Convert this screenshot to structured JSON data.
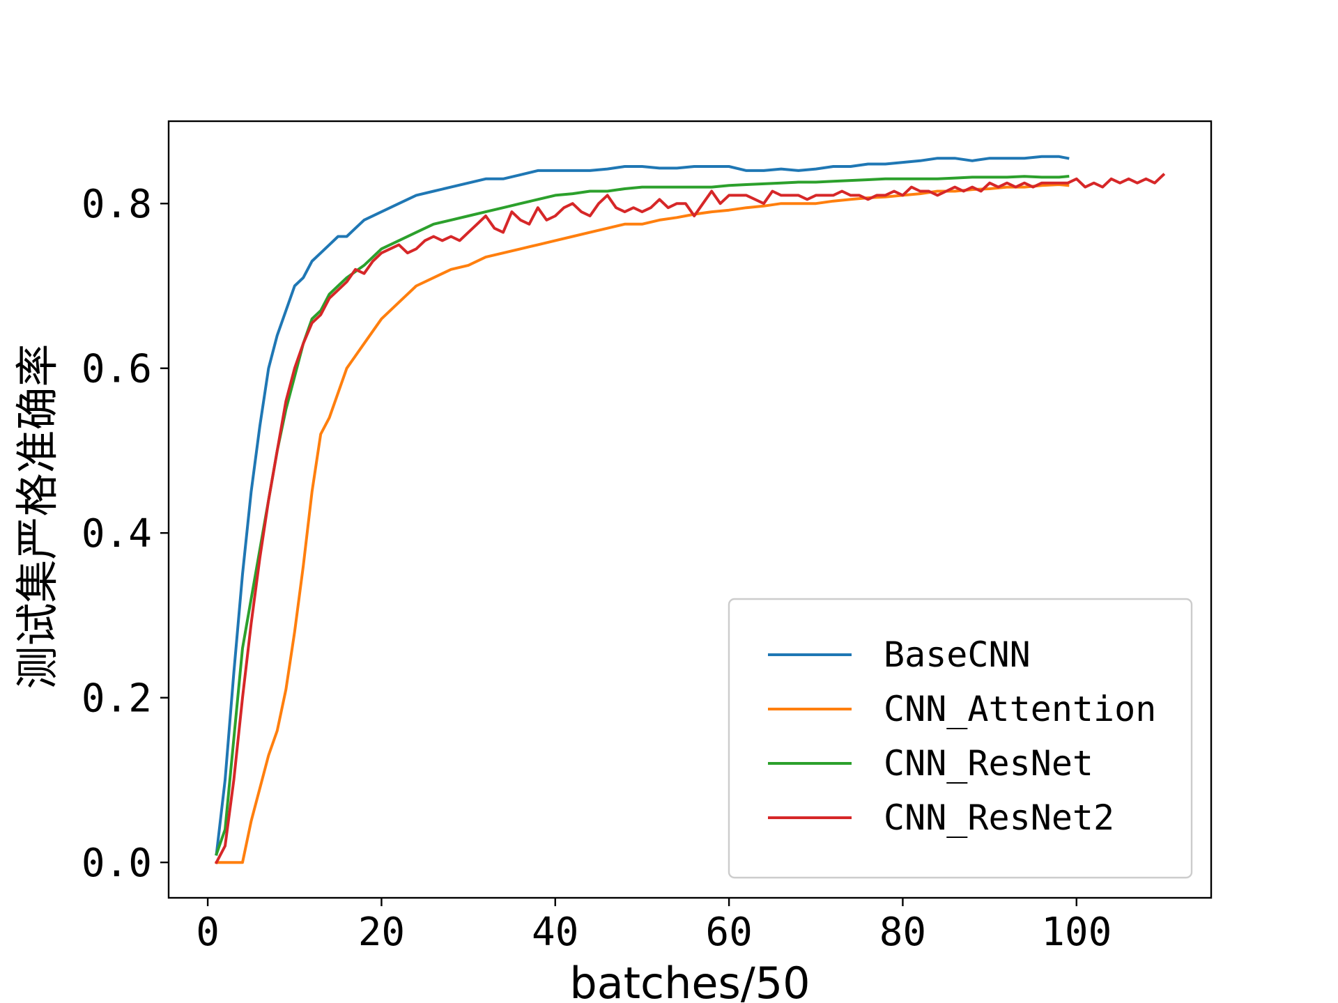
{
  "chart_data": {
    "type": "line",
    "title": "",
    "xlabel": "batches/50",
    "ylabel": "测试集严格准确率",
    "xlim": [
      -4.5,
      115.5
    ],
    "ylim": [
      -0.043,
      0.9
    ],
    "xticks": [
      0,
      20,
      40,
      60,
      80,
      100
    ],
    "xtick_labels": [
      "0",
      "20",
      "40",
      "60",
      "80",
      "100"
    ],
    "yticks": [
      0.0,
      0.2,
      0.4,
      0.6,
      0.8
    ],
    "ytick_labels": [
      "0.0",
      "0.2",
      "0.4",
      "0.6",
      "0.8"
    ],
    "grid": false,
    "legend_position": "lower-right",
    "colors": {
      "BaseCNN": "#1f77b4",
      "CNN_Attention": "#ff7f0e",
      "CNN_ResNet": "#2ca02c",
      "CNN_ResNet2": "#d62728"
    },
    "series": [
      {
        "name": "BaseCNN",
        "x": [
          1,
          2,
          3,
          4,
          5,
          6,
          7,
          8,
          9,
          10,
          11,
          12,
          13,
          14,
          15,
          16,
          17,
          18,
          20,
          22,
          24,
          26,
          28,
          30,
          32,
          34,
          36,
          38,
          40,
          42,
          44,
          46,
          48,
          50,
          52,
          54,
          56,
          58,
          60,
          62,
          64,
          66,
          68,
          70,
          72,
          74,
          76,
          78,
          80,
          82,
          84,
          86,
          88,
          90,
          92,
          94,
          96,
          98,
          99
        ],
        "y": [
          0.01,
          0.1,
          0.23,
          0.35,
          0.45,
          0.53,
          0.6,
          0.64,
          0.67,
          0.7,
          0.71,
          0.73,
          0.74,
          0.75,
          0.76,
          0.76,
          0.77,
          0.78,
          0.79,
          0.8,
          0.81,
          0.815,
          0.82,
          0.825,
          0.83,
          0.83,
          0.835,
          0.84,
          0.84,
          0.84,
          0.84,
          0.842,
          0.845,
          0.845,
          0.843,
          0.843,
          0.845,
          0.845,
          0.845,
          0.84,
          0.84,
          0.842,
          0.84,
          0.842,
          0.845,
          0.845,
          0.848,
          0.848,
          0.85,
          0.852,
          0.855,
          0.855,
          0.852,
          0.855,
          0.855,
          0.855,
          0.857,
          0.857,
          0.855
        ]
      },
      {
        "name": "CNN_Attention",
        "x": [
          1,
          2,
          3,
          4,
          5,
          6,
          7,
          8,
          9,
          10,
          11,
          12,
          13,
          14,
          15,
          16,
          18,
          20,
          22,
          24,
          26,
          28,
          30,
          32,
          34,
          36,
          38,
          40,
          42,
          44,
          46,
          48,
          50,
          52,
          54,
          56,
          58,
          60,
          62,
          64,
          66,
          68,
          70,
          72,
          74,
          76,
          78,
          80,
          82,
          84,
          86,
          88,
          90,
          92,
          94,
          96,
          98,
          99
        ],
        "y": [
          0.0,
          0.0,
          0.0,
          0.0,
          0.05,
          0.09,
          0.13,
          0.16,
          0.21,
          0.28,
          0.36,
          0.45,
          0.52,
          0.54,
          0.57,
          0.6,
          0.63,
          0.66,
          0.68,
          0.7,
          0.71,
          0.72,
          0.725,
          0.735,
          0.74,
          0.745,
          0.75,
          0.755,
          0.76,
          0.765,
          0.77,
          0.775,
          0.775,
          0.78,
          0.783,
          0.787,
          0.79,
          0.792,
          0.795,
          0.797,
          0.8,
          0.8,
          0.8,
          0.803,
          0.805,
          0.807,
          0.808,
          0.81,
          0.812,
          0.815,
          0.815,
          0.817,
          0.818,
          0.82,
          0.82,
          0.822,
          0.823,
          0.822
        ]
      },
      {
        "name": "CNN_ResNet",
        "x": [
          1,
          2,
          3,
          4,
          5,
          6,
          7,
          8,
          9,
          10,
          11,
          12,
          13,
          14,
          15,
          16,
          18,
          20,
          22,
          24,
          26,
          28,
          30,
          32,
          34,
          36,
          38,
          40,
          42,
          44,
          46,
          48,
          50,
          52,
          54,
          56,
          58,
          60,
          62,
          64,
          66,
          68,
          70,
          72,
          74,
          76,
          78,
          80,
          82,
          84,
          86,
          88,
          90,
          92,
          94,
          96,
          98,
          99
        ],
        "y": [
          0.01,
          0.04,
          0.15,
          0.26,
          0.32,
          0.38,
          0.44,
          0.5,
          0.55,
          0.59,
          0.63,
          0.66,
          0.67,
          0.69,
          0.7,
          0.71,
          0.725,
          0.745,
          0.755,
          0.765,
          0.775,
          0.78,
          0.785,
          0.79,
          0.795,
          0.8,
          0.805,
          0.81,
          0.812,
          0.815,
          0.815,
          0.818,
          0.82,
          0.82,
          0.82,
          0.82,
          0.82,
          0.822,
          0.823,
          0.824,
          0.825,
          0.826,
          0.826,
          0.827,
          0.828,
          0.829,
          0.83,
          0.83,
          0.83,
          0.83,
          0.831,
          0.832,
          0.832,
          0.832,
          0.833,
          0.832,
          0.832,
          0.833
        ]
      },
      {
        "name": "CNN_ResNet2",
        "x": [
          1,
          2,
          3,
          4,
          5,
          6,
          7,
          8,
          9,
          10,
          11,
          12,
          13,
          14,
          15,
          16,
          17,
          18,
          19,
          20,
          21,
          22,
          23,
          24,
          25,
          26,
          27,
          28,
          29,
          30,
          31,
          32,
          33,
          34,
          35,
          36,
          37,
          38,
          39,
          40,
          41,
          42,
          43,
          44,
          45,
          46,
          47,
          48,
          49,
          50,
          51,
          52,
          53,
          54,
          55,
          56,
          57,
          58,
          59,
          60,
          61,
          62,
          63,
          64,
          65,
          66,
          67,
          68,
          69,
          70,
          71,
          72,
          73,
          74,
          75,
          76,
          77,
          78,
          79,
          80,
          81,
          82,
          83,
          84,
          85,
          86,
          87,
          88,
          89,
          90,
          91,
          92,
          93,
          94,
          95,
          96,
          97,
          98,
          99,
          100,
          101,
          102,
          103,
          104,
          105,
          106,
          107,
          108,
          109,
          110
        ],
        "y": [
          0.0,
          0.02,
          0.1,
          0.2,
          0.29,
          0.37,
          0.44,
          0.5,
          0.56,
          0.6,
          0.63,
          0.655,
          0.665,
          0.685,
          0.695,
          0.705,
          0.72,
          0.715,
          0.73,
          0.74,
          0.745,
          0.75,
          0.74,
          0.745,
          0.755,
          0.76,
          0.755,
          0.76,
          0.755,
          0.765,
          0.775,
          0.785,
          0.77,
          0.765,
          0.79,
          0.78,
          0.775,
          0.795,
          0.78,
          0.785,
          0.795,
          0.8,
          0.79,
          0.785,
          0.8,
          0.81,
          0.795,
          0.79,
          0.795,
          0.79,
          0.795,
          0.805,
          0.795,
          0.8,
          0.8,
          0.785,
          0.8,
          0.815,
          0.8,
          0.81,
          0.81,
          0.81,
          0.805,
          0.8,
          0.815,
          0.81,
          0.81,
          0.81,
          0.805,
          0.81,
          0.81,
          0.81,
          0.815,
          0.81,
          0.81,
          0.805,
          0.81,
          0.81,
          0.815,
          0.81,
          0.82,
          0.815,
          0.815,
          0.81,
          0.815,
          0.82,
          0.815,
          0.82,
          0.815,
          0.825,
          0.82,
          0.825,
          0.82,
          0.825,
          0.82,
          0.825,
          0.825,
          0.825,
          0.825,
          0.83,
          0.82,
          0.825,
          0.82,
          0.83,
          0.825,
          0.83,
          0.825,
          0.83,
          0.825,
          0.835
        ]
      }
    ]
  }
}
